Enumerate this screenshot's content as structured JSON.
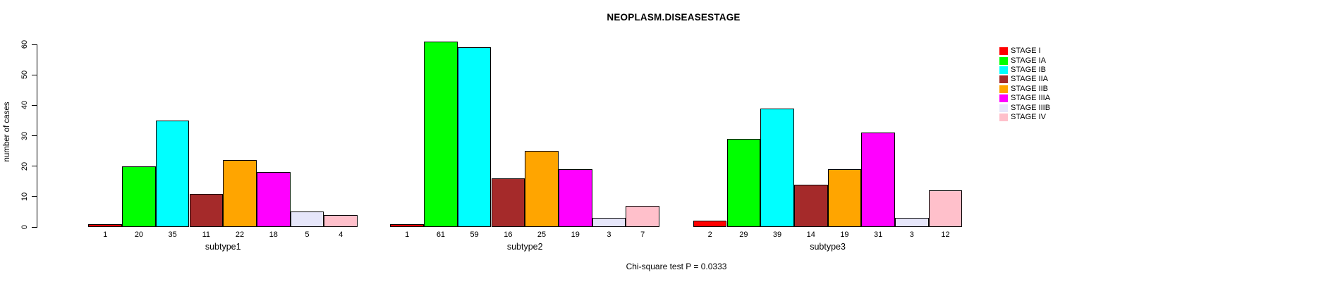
{
  "chart_data": {
    "type": "bar",
    "title": "NEOPLASM.DISEASESTAGE",
    "ylabel": "number of cases",
    "xlabel": "",
    "ylim": [
      0,
      60
    ],
    "yticks": [
      0,
      10,
      20,
      30,
      40,
      50,
      60
    ],
    "grid": false,
    "legend_position": "right",
    "bar_value_labels": true,
    "categories": [
      "subtype1",
      "subtype2",
      "subtype3"
    ],
    "series": [
      {
        "name": "STAGE I",
        "color": "#FF0000",
        "values": [
          1,
          1,
          2
        ]
      },
      {
        "name": "STAGE IA",
        "color": "#00FF00",
        "values": [
          20,
          61,
          29
        ]
      },
      {
        "name": "STAGE IB",
        "color": "#00FFFF",
        "values": [
          35,
          59,
          39
        ]
      },
      {
        "name": "STAGE IIA",
        "color": "#A52A2A",
        "values": [
          11,
          16,
          14
        ]
      },
      {
        "name": "STAGE IIB",
        "color": "#FFA500",
        "values": [
          22,
          25,
          19
        ]
      },
      {
        "name": "STAGE IIIA",
        "color": "#FF00FF",
        "values": [
          18,
          19,
          31
        ]
      },
      {
        "name": "STAGE IIIB",
        "color": "#E6E6FA",
        "values": [
          5,
          3,
          3
        ]
      },
      {
        "name": "STAGE IV",
        "color": "#FFC0CB",
        "values": [
          4,
          7,
          12
        ]
      }
    ],
    "annotation": "Chi-square test P = 0.0333"
  }
}
